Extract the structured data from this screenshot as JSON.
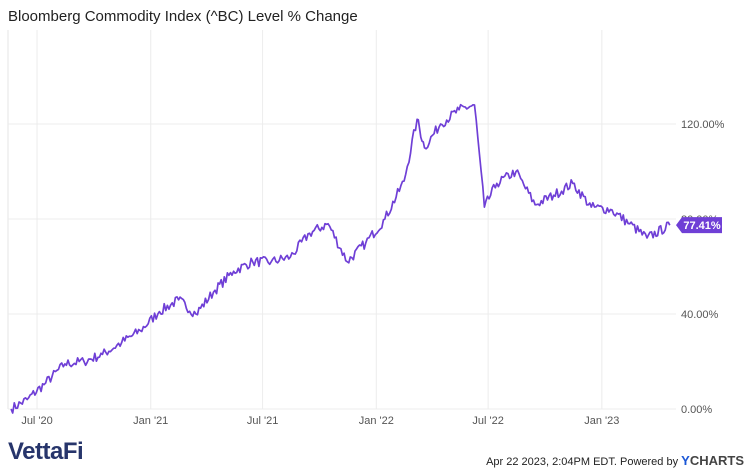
{
  "chart_data": {
    "type": "line",
    "title": "Bloomberg Commodity Index (^BC) Level % Change",
    "series": [
      {
        "color": "#6f3fd6",
        "last_value_label": "77.41%",
        "x": [
          "2020-05-20",
          "2020-06-15",
          "2020-07-15",
          "2020-08-15",
          "2020-09-15",
          "2020-10-15",
          "2020-11-15",
          "2020-12-15",
          "2021-01-15",
          "2021-02-15",
          "2021-03-15",
          "2021-04-15",
          "2021-05-15",
          "2021-06-15",
          "2021-07-15",
          "2021-08-15",
          "2021-09-15",
          "2021-10-15",
          "2021-11-15",
          "2021-12-15",
          "2022-01-15",
          "2022-02-15",
          "2022-03-08",
          "2022-03-20",
          "2022-04-15",
          "2022-05-15",
          "2022-06-09",
          "2022-06-25",
          "2022-07-15",
          "2022-08-15",
          "2022-09-15",
          "2022-10-15",
          "2022-11-15",
          "2022-12-15",
          "2023-01-15",
          "2023-02-15",
          "2023-03-15",
          "2023-04-21"
        ],
        "y": [
          0,
          4,
          11,
          19,
          20,
          23,
          28,
          33,
          41,
          46,
          40,
          50,
          58,
          62,
          62,
          64,
          74,
          78,
          62,
          70,
          80,
          96,
          122,
          110,
          120,
          126,
          128,
          85,
          95,
          100,
          86,
          90,
          95,
          85,
          84,
          78,
          72,
          77.41
        ]
      }
    ],
    "yticks": [
      "0.00%",
      "40.00%",
      "80.00%",
      "120.00%"
    ],
    "ytick_values": [
      0,
      40,
      80,
      120
    ],
    "xticks": [
      "Jul '20",
      "Jan '21",
      "Jul '21",
      "Jan '22",
      "Jul '22",
      "Jan '23"
    ],
    "xtick_dates": [
      "2020-07-01",
      "2021-01-01",
      "2021-07-01",
      "2022-01-01",
      "2022-07-01",
      "2023-01-01"
    ],
    "xlim": [
      "2020-05-15",
      "2023-05-01"
    ],
    "ylim": [
      0,
      120
    ],
    "grid": true
  },
  "footer": {
    "logo_text": "VettaFi",
    "timestamp": "Apr 22 2023, 2:04PM EDT.",
    "powered_by": "Powered by",
    "brand_y": "Y",
    "brand_rest": "CHARTS"
  }
}
